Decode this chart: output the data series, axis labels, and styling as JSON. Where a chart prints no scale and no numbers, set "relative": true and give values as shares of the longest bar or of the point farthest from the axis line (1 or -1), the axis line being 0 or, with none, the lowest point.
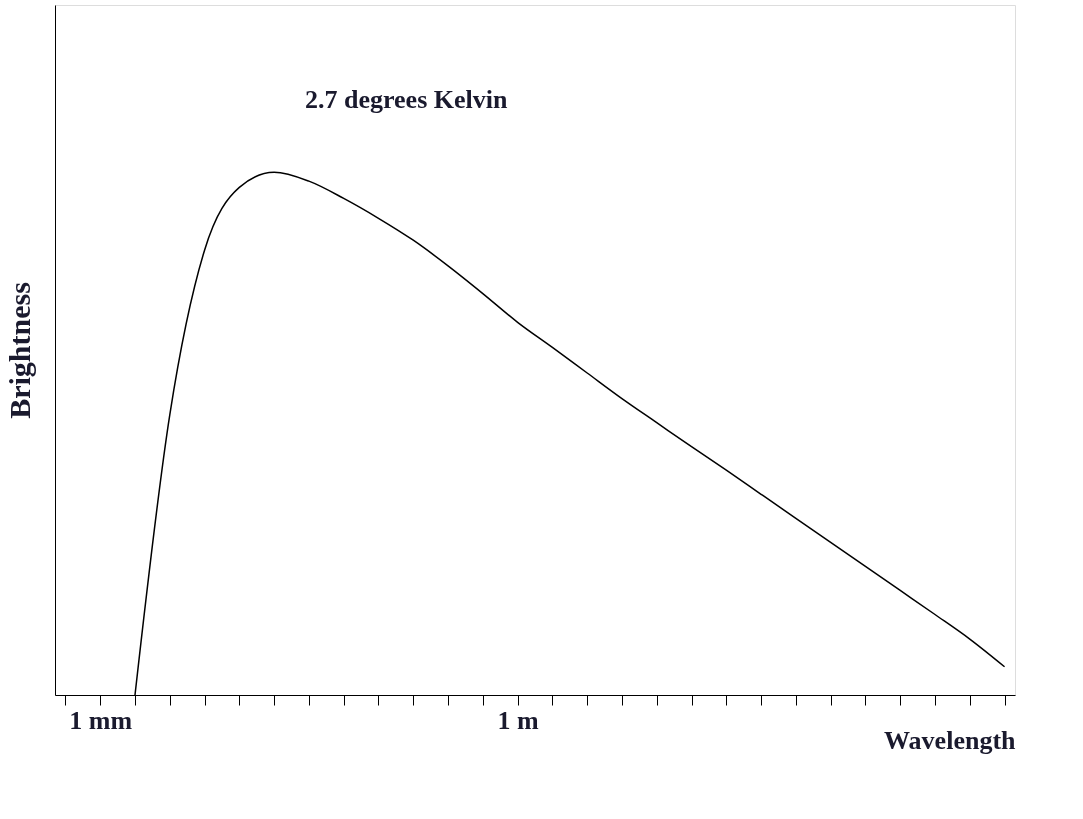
{
  "chart_data": {
    "type": "line",
    "relative": true,
    "xlabel": "Wavelength",
    "ylabel": "Brightness",
    "annotations": [
      "2.7 degrees Kelvin"
    ],
    "categories": [
      null,
      "1 mm",
      null,
      null,
      null,
      null,
      null,
      null,
      null,
      null,
      null,
      null,
      null,
      "1 m",
      null,
      null,
      null,
      null,
      null,
      null,
      null,
      null,
      null,
      null,
      null,
      null,
      null,
      null
    ],
    "series": [
      {
        "color": "#000000",
        "values": [
          null,
          null,
          0,
          0.536,
          0.851,
          0.971,
          1,
          0.983,
          0.95,
          0.912,
          0.87,
          0.821,
          0.768,
          0.713,
          0.665,
          0.616,
          0.567,
          0.521,
          0.475,
          0.43,
          0.384,
          0.338,
          0.292,
          0.246,
          0.2,
          0.154,
          0.107,
          0.054
        ]
      }
    ],
    "grid": false,
    "marker": "none",
    "line_style": "solid"
  }
}
